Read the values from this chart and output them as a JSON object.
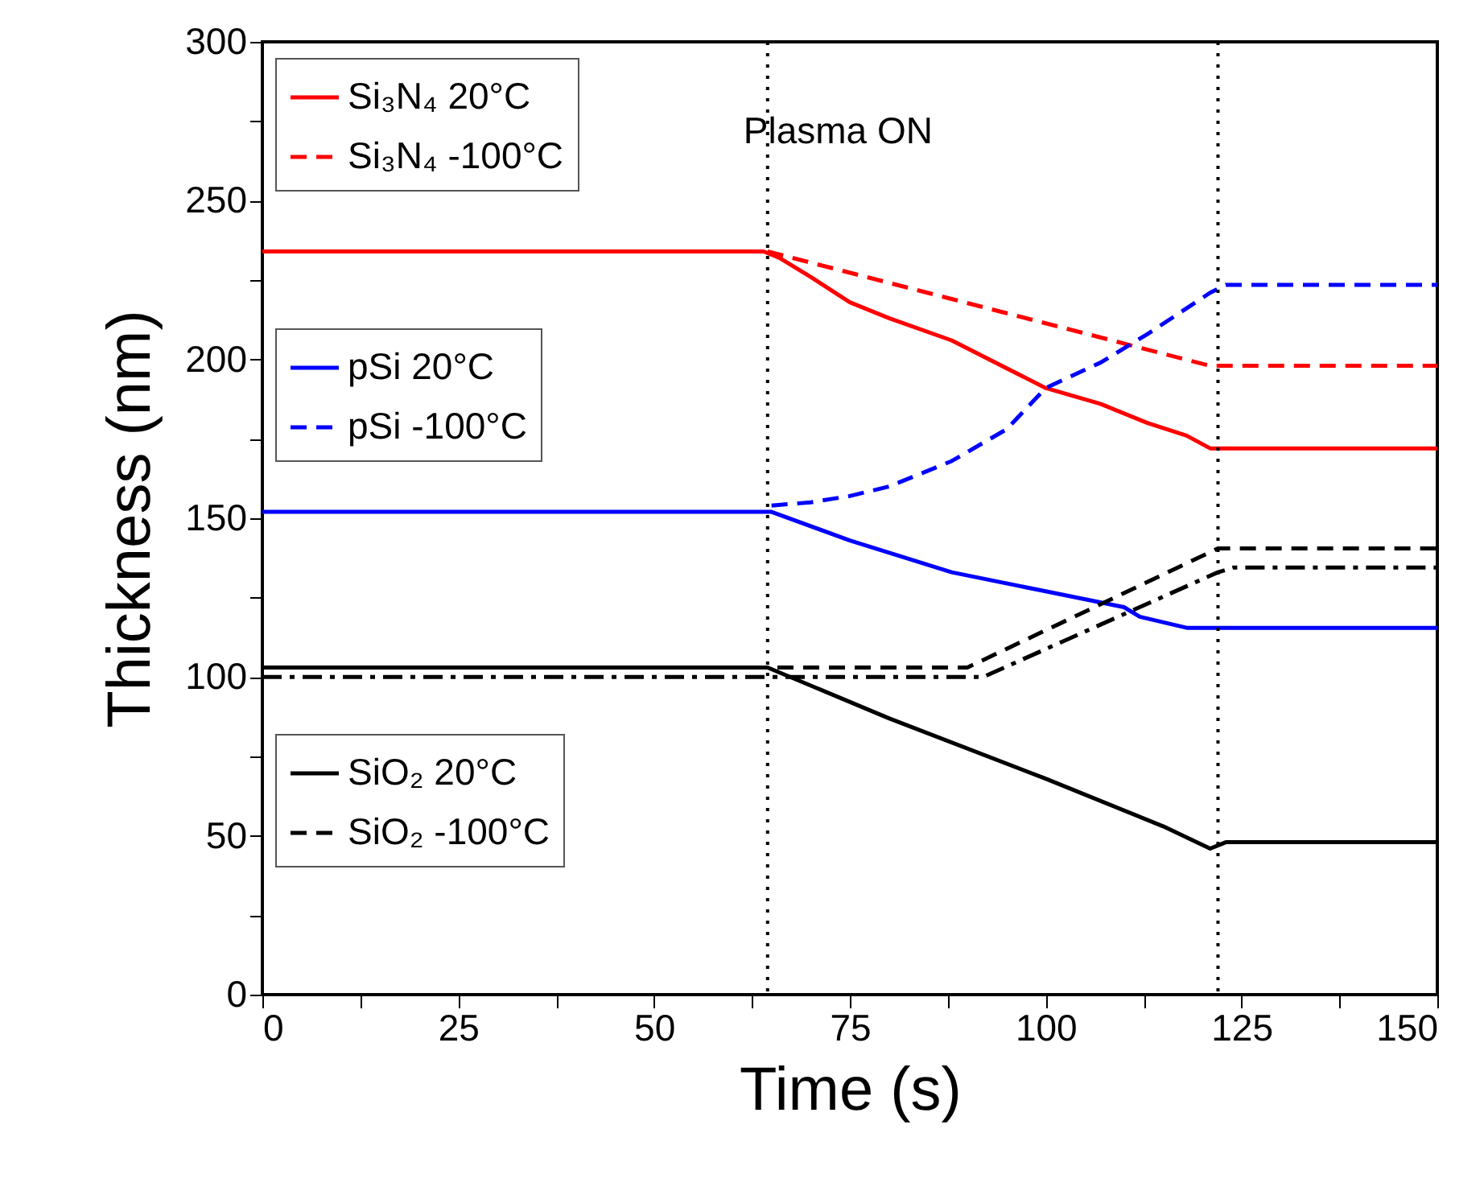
{
  "chart_data": {
    "type": "line",
    "xlabel": "Time (s)",
    "ylabel": "Thickness (nm)",
    "xlim": [
      0,
      150
    ],
    "ylim": [
      0,
      300
    ],
    "xticks": [
      0,
      {
        "value": 12.5,
        "label": null
      },
      25,
      {
        "value": 37.5,
        "label": null
      },
      50,
      {
        "value": 62.5,
        "label": null
      },
      75,
      {
        "value": 87.5,
        "label": null
      },
      100,
      {
        "value": 112.5,
        "label": null
      },
      125,
      {
        "value": 137.5,
        "label": null
      },
      150
    ],
    "yticks": [
      0,
      {
        "value": 25,
        "label": null
      },
      50,
      {
        "value": 75,
        "label": null
      },
      100,
      {
        "value": 125,
        "label": null
      },
      150,
      {
        "value": 175,
        "label": null
      },
      200,
      {
        "value": 225,
        "label": null
      },
      250,
      {
        "value": 275,
        "label": null
      },
      300
    ],
    "grid": false,
    "legend": "top left",
    "annotations": [
      "Plasma ON"
    ],
    "ref_lines": [
      {
        "axis": "x",
        "value": 64.5,
        "color": "#000000",
        "line_style": "dotted"
      },
      {
        "axis": "x",
        "value": 122,
        "color": "#000000",
        "line_style": "dotted"
      }
    ],
    "series": [
      {
        "name": "Si₃N₄ 20°C",
        "color": "#ff0000",
        "line_style": "solid",
        "x": [
          0,
          64,
          66,
          70,
          75,
          80,
          88,
          100,
          107,
          113,
          118,
          121,
          150
        ],
        "values": [
          234,
          234,
          232,
          226,
          218,
          213,
          206,
          191,
          186,
          180,
          176,
          172,
          172
        ]
      },
      {
        "name": "Si₃N₄ -100°C",
        "color": "#ff0000",
        "line_style": "dashed",
        "x": [
          64.5,
          121,
          150
        ],
        "values": [
          234,
          198,
          198
        ]
      },
      {
        "name": "pSi 20°C",
        "color": "#0000ff",
        "line_style": "solid",
        "x": [
          0,
          65,
          75,
          88,
          100,
          110,
          112,
          118,
          150
        ],
        "values": [
          152,
          152,
          143,
          133,
          127,
          122,
          119,
          115.5,
          115.5
        ]
      },
      {
        "name": "pSi -100°C",
        "color": "#0000ff",
        "line_style": "dashed",
        "x": [
          65,
          70,
          75,
          80,
          88,
          95,
          100,
          107,
          113,
          121,
          123,
          150
        ],
        "values": [
          154,
          155,
          157,
          160,
          168,
          178,
          191,
          199,
          208,
          221,
          223.5,
          223.5
        ]
      },
      {
        "name": "SiO₂ 20°C",
        "color": "#000000",
        "line_style": "solid",
        "x": [
          0,
          64.5,
          80,
          100,
          115,
          121,
          123,
          150
        ],
        "values": [
          103,
          103,
          87,
          68,
          53,
          46,
          48,
          48
        ]
      },
      {
        "name": "SiO₂ -100°C",
        "color": "#000000",
        "line_style": "dashed",
        "x": [
          0,
          90,
          122,
          150
        ],
        "values": [
          103,
          103,
          140.5,
          140.5
        ]
      },
      {
        "color": "#000000",
        "line_style": "dashdot",
        "x": [
          0,
          92,
          122,
          124,
          150
        ],
        "values": [
          100,
          100,
          133,
          134.5,
          134.5
        ]
      }
    ]
  }
}
